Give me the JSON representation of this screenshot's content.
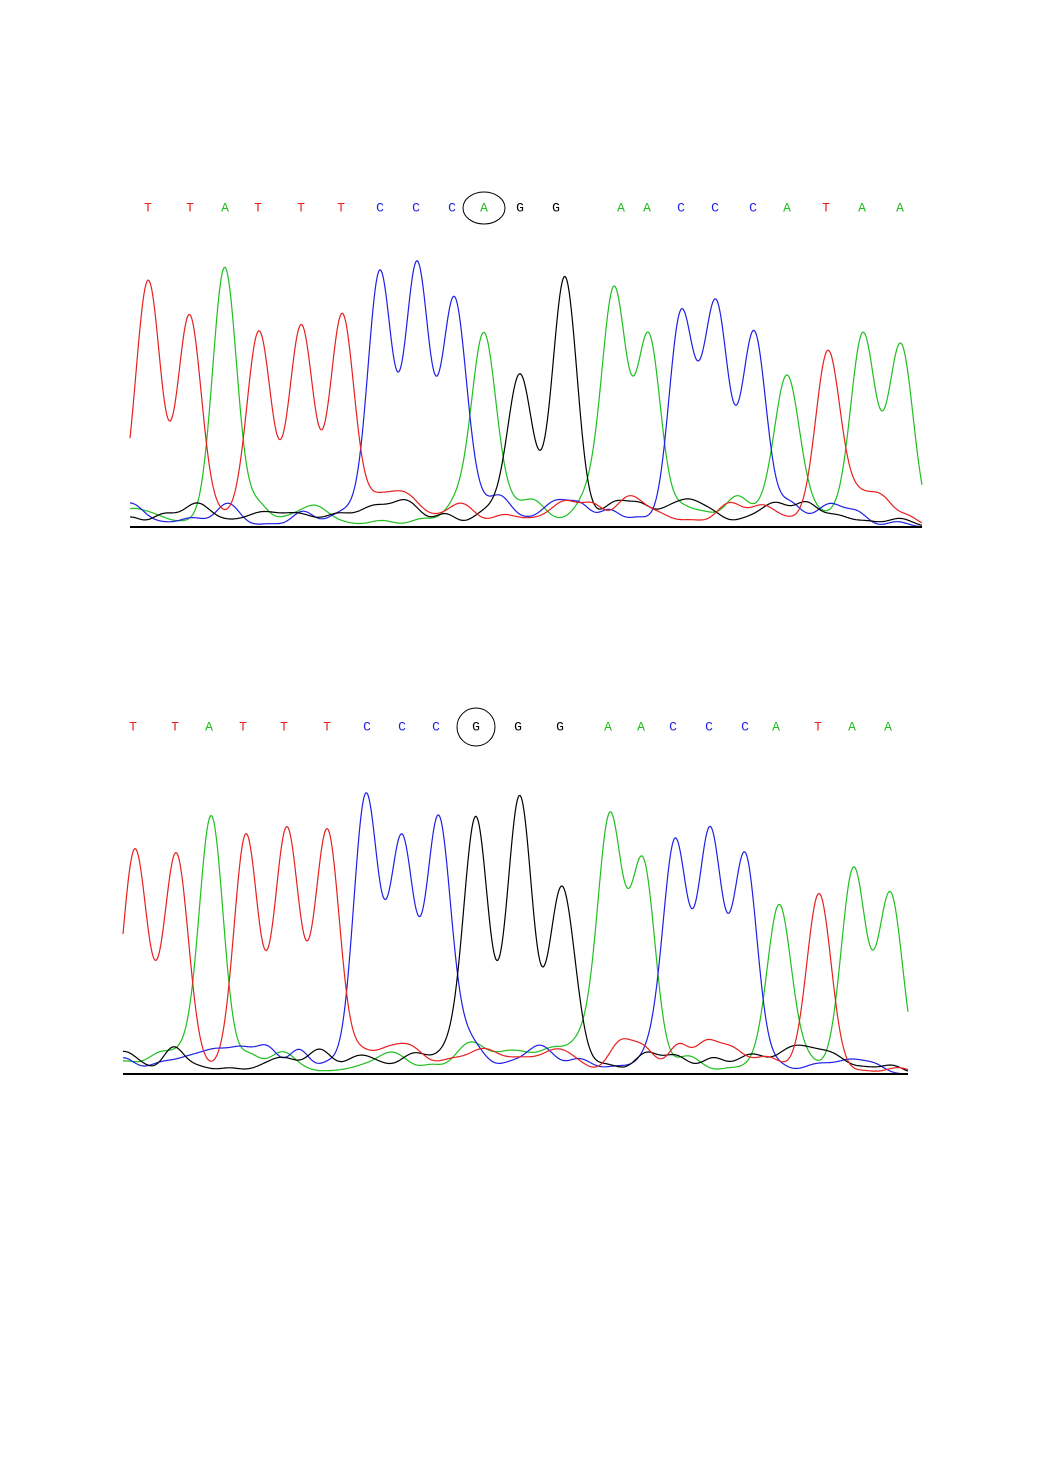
{
  "base_colors": {
    "A": "#1fbf1f",
    "C": "#1f1fe6",
    "G": "#000000",
    "T": "#e6201f"
  },
  "panels": [
    {
      "bases": [
        "T",
        "T",
        "A",
        "T",
        "T",
        "T",
        "C",
        "C",
        "C",
        "A",
        "G",
        "G",
        "A",
        "A",
        "C",
        "C",
        "C",
        "A",
        "T",
        "A",
        "A"
      ]
    },
    {
      "bases": [
        "T",
        "T",
        "A",
        "T",
        "T",
        "T",
        "C",
        "C",
        "C",
        "G",
        "G",
        "G",
        "A",
        "A",
        "C",
        "C",
        "C",
        "A",
        "T",
        "A",
        "A"
      ]
    }
  ]
}
